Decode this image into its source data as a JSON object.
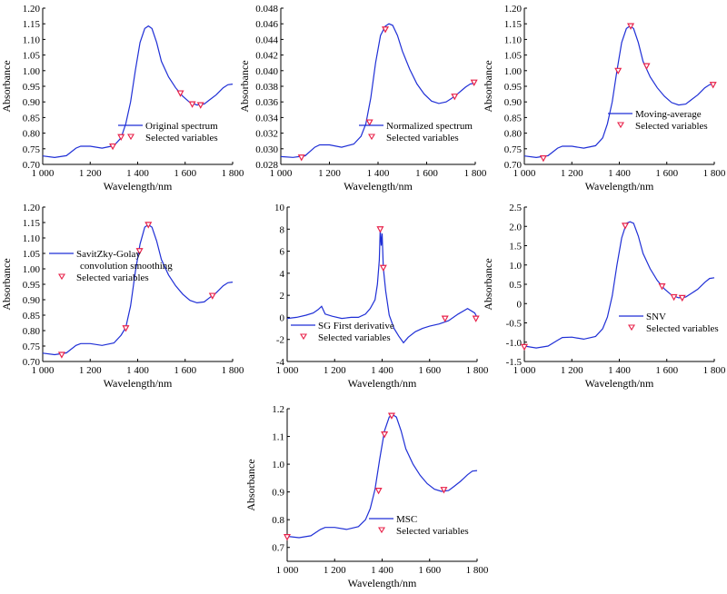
{
  "figure": {
    "colors": {
      "line": "#1f2fd6",
      "marker": "#e8224a",
      "axis": "#000000"
    }
  },
  "chart_data": [
    {
      "type": "line",
      "xlabel": "Wavelength/nm",
      "ylabel": "Absorbance",
      "xlim": [
        1000,
        1800
      ],
      "ylim": [
        0.7,
        1.2
      ],
      "x_ticks": [
        1000,
        1200,
        1400,
        1600,
        1800
      ],
      "x_tick_labels": [
        "1 000",
        "1 200",
        "1 400",
        "1 600",
        "1 800"
      ],
      "y_ticks": [
        0.7,
        0.75,
        0.8,
        0.85,
        0.9,
        0.95,
        1.0,
        1.05,
        1.1,
        1.15,
        1.2
      ],
      "y_tick_labels": [
        "0.70",
        "0.75",
        "0.80",
        "0.85",
        "0.90",
        "0.95",
        "1.00",
        "1.05",
        "1.10",
        "1.15",
        "1.20"
      ],
      "legend": {
        "placement": "bottom-right",
        "line_label": [
          "Original spectrum"
        ],
        "marker_label": "Selected variables"
      },
      "series": [
        {
          "x": [
            1000,
            1050,
            1100,
            1140,
            1160,
            1200,
            1250,
            1300,
            1330,
            1350,
            1370,
            1390,
            1410,
            1430,
            1445,
            1460,
            1480,
            1500,
            1530,
            1560,
            1590,
            1620,
            1650,
            1680,
            1700,
            1730,
            1760,
            1780,
            1800
          ],
          "y": [
            0.727,
            0.722,
            0.728,
            0.752,
            0.758,
            0.758,
            0.752,
            0.76,
            0.785,
            0.83,
            0.9,
            1.0,
            1.09,
            1.135,
            1.143,
            1.135,
            1.09,
            1.03,
            0.98,
            0.945,
            0.918,
            0.898,
            0.89,
            0.893,
            0.905,
            0.922,
            0.945,
            0.955,
            0.957
          ]
        }
      ],
      "selected": {
        "x": [
          1295,
          1330,
          1580,
          1630,
          1665
        ],
        "y": [
          0.758,
          0.788,
          0.928,
          0.893,
          0.89
        ]
      }
    },
    {
      "type": "line",
      "xlabel": "Wavelength/nm",
      "ylabel": "Absorbance",
      "xlim": [
        1000,
        1800
      ],
      "ylim": [
        0.028,
        0.048
      ],
      "x_ticks": [
        1000,
        1200,
        1400,
        1600,
        1800
      ],
      "x_tick_labels": [
        "1 000",
        "1 200",
        "1 400",
        "1 600",
        "1 800"
      ],
      "y_ticks": [
        0.028,
        0.03,
        0.032,
        0.034,
        0.036,
        0.038,
        0.04,
        0.042,
        0.044,
        0.046,
        0.048
      ],
      "y_tick_labels": [
        "0.028",
        "0.030",
        "0.032",
        "0.034",
        "0.036",
        "0.038",
        "0.040",
        "0.042",
        "0.044",
        "0.046",
        "0.048"
      ],
      "legend": {
        "placement": "bottom-right",
        "line_label": [
          "Normalized spectrum"
        ],
        "marker_label": "Selected variables"
      },
      "series": [
        {
          "x": [
            1000,
            1050,
            1100,
            1140,
            1160,
            1200,
            1250,
            1300,
            1330,
            1350,
            1370,
            1390,
            1410,
            1430,
            1445,
            1460,
            1480,
            1500,
            1530,
            1560,
            1590,
            1620,
            1650,
            1680,
            1700,
            1730,
            1760,
            1780,
            1800
          ],
          "y": [
            0.029,
            0.0289,
            0.0291,
            0.0302,
            0.0305,
            0.0305,
            0.0302,
            0.0306,
            0.0316,
            0.0332,
            0.0365,
            0.041,
            0.0445,
            0.0457,
            0.046,
            0.0458,
            0.0445,
            0.0425,
            0.0402,
            0.0383,
            0.037,
            0.0361,
            0.0358,
            0.036,
            0.0364,
            0.0371,
            0.0379,
            0.0383,
            0.0384
          ]
        }
      ],
      "selected": {
        "x": [
          1085,
          1365,
          1430,
          1715,
          1795
        ],
        "y": [
          0.0289,
          0.0334,
          0.0453,
          0.0367,
          0.0385
        ]
      }
    },
    {
      "type": "line",
      "xlabel": "Wavelength/nm",
      "ylabel": "Absorbance",
      "xlim": [
        1000,
        1800
      ],
      "ylim": [
        0.7,
        1.2
      ],
      "x_ticks": [
        1000,
        1200,
        1400,
        1600,
        1800
      ],
      "x_tick_labels": [
        "1 000",
        "1 200",
        "1 400",
        "1 600",
        "1 800"
      ],
      "y_ticks": [
        0.7,
        0.75,
        0.8,
        0.85,
        0.9,
        0.95,
        1.0,
        1.05,
        1.1,
        1.15,
        1.2
      ],
      "y_tick_labels": [
        "0.70",
        "0.75",
        "0.80",
        "0.85",
        "0.90",
        "0.95",
        "1.00",
        "1.05",
        "1.10",
        "1.15",
        "1.20"
      ],
      "legend": {
        "placement": "bottom-right",
        "line_label": [
          "Moving-average"
        ],
        "marker_label": "Selected variables"
      },
      "series": [
        {
          "x": [
            1000,
            1050,
            1100,
            1140,
            1160,
            1200,
            1250,
            1300,
            1330,
            1350,
            1370,
            1390,
            1410,
            1430,
            1445,
            1460,
            1480,
            1500,
            1530,
            1560,
            1590,
            1620,
            1650,
            1680,
            1700,
            1730,
            1760,
            1780,
            1800
          ],
          "y": [
            0.727,
            0.722,
            0.728,
            0.752,
            0.758,
            0.758,
            0.752,
            0.76,
            0.785,
            0.83,
            0.9,
            1.0,
            1.09,
            1.135,
            1.143,
            1.135,
            1.09,
            1.03,
            0.98,
            0.945,
            0.918,
            0.898,
            0.89,
            0.893,
            0.905,
            0.922,
            0.945,
            0.955,
            0.957
          ]
        }
      ],
      "selected": {
        "x": [
          1080,
          1395,
          1448,
          1515,
          1795
        ],
        "y": [
          0.72,
          1.0,
          1.143,
          1.015,
          0.955
        ]
      }
    },
    {
      "type": "line",
      "xlabel": "Wavelength/nm",
      "ylabel": "Absorbance",
      "xlim": [
        1000,
        1800
      ],
      "ylim": [
        0.7,
        1.2
      ],
      "x_ticks": [
        1000,
        1200,
        1400,
        1600,
        1800
      ],
      "x_tick_labels": [
        "1 000",
        "1 200",
        "1 400",
        "1 600",
        "1 800"
      ],
      "y_ticks": [
        0.7,
        0.75,
        0.8,
        0.85,
        0.9,
        0.95,
        1.0,
        1.05,
        1.1,
        1.15,
        1.2
      ],
      "y_tick_labels": [
        "0.70",
        "0.75",
        "0.80",
        "0.85",
        "0.90",
        "0.95",
        "1.00",
        "1.05",
        "1.10",
        "1.15",
        "1.20"
      ],
      "legend": {
        "placement": "middle-left",
        "line_label": [
          "SavitZky-Golay",
          "convolution smoothing"
        ],
        "marker_label": "Selected variables"
      },
      "series": [
        {
          "x": [
            1000,
            1050,
            1100,
            1140,
            1160,
            1200,
            1250,
            1300,
            1330,
            1350,
            1370,
            1390,
            1410,
            1430,
            1445,
            1460,
            1480,
            1500,
            1530,
            1560,
            1590,
            1620,
            1650,
            1680,
            1700,
            1730,
            1760,
            1780,
            1800
          ],
          "y": [
            0.727,
            0.722,
            0.728,
            0.752,
            0.758,
            0.758,
            0.752,
            0.76,
            0.785,
            0.81,
            0.88,
            0.99,
            1.08,
            1.135,
            1.143,
            1.135,
            1.09,
            1.03,
            0.98,
            0.945,
            0.918,
            0.898,
            0.89,
            0.893,
            0.905,
            0.922,
            0.945,
            0.955,
            0.957
          ]
        }
      ],
      "selected": {
        "x": [
          1080,
          1350,
          1408,
          1445,
          1715
        ],
        "y": [
          0.722,
          0.808,
          1.058,
          1.143,
          0.913
        ]
      }
    },
    {
      "type": "line",
      "xlabel": "Wavelength/nm",
      "ylabel": "",
      "xlim": [
        1000,
        1800
      ],
      "ylim": [
        -4,
        10
      ],
      "x_ticks": [
        1000,
        1200,
        1400,
        1600,
        1800
      ],
      "x_tick_labels": [
        "1 000",
        "1 200",
        "1 400",
        "1 600",
        "1 800"
      ],
      "y_ticks": [
        -4,
        -2,
        0,
        2,
        4,
        6,
        8,
        10
      ],
      "y_tick_labels": [
        "-4",
        "-2",
        "0",
        "2",
        "4",
        "6",
        "8",
        "10"
      ],
      "legend": {
        "placement": "bottom-center",
        "line_label": [
          "SG First derivative"
        ],
        "marker_label": "Selected variables"
      },
      "series": [
        {
          "x": [
            1000,
            1040,
            1080,
            1110,
            1130,
            1145,
            1160,
            1190,
            1230,
            1270,
            1300,
            1330,
            1350,
            1370,
            1380,
            1388,
            1392,
            1396,
            1400,
            1405,
            1415,
            1430,
            1450,
            1470,
            1490,
            1510,
            1540,
            1570,
            1600,
            1640,
            1680,
            1720,
            1760,
            1790,
            1800
          ],
          "y": [
            -0.1,
            0.0,
            0.2,
            0.4,
            0.7,
            1.0,
            0.3,
            0.1,
            -0.1,
            0.0,
            0.0,
            0.3,
            0.8,
            1.6,
            3.0,
            5.2,
            8.0,
            6.5,
            7.6,
            4.5,
            2.4,
            0.2,
            -1.0,
            -1.7,
            -2.3,
            -1.8,
            -1.3,
            -1.0,
            -0.8,
            -0.6,
            -0.3,
            0.3,
            0.8,
            0.4,
            0.0
          ]
        }
      ],
      "selected": {
        "x": [
          1392,
          1405,
          1665,
          1795
        ],
        "y": [
          8.0,
          4.5,
          -0.1,
          -0.1
        ]
      }
    },
    {
      "type": "line",
      "xlabel": "Wavelength/nm",
      "ylabel": "Absorbance",
      "xlim": [
        1000,
        1800
      ],
      "ylim": [
        -1.5,
        2.5
      ],
      "x_ticks": [
        1000,
        1200,
        1400,
        1600,
        1800
      ],
      "x_tick_labels": [
        "1 000",
        "1 200",
        "1 400",
        "1 600",
        "1 800"
      ],
      "y_ticks": [
        -1.5,
        -1.0,
        -0.5,
        0,
        0.5,
        1.0,
        1.5,
        2.0,
        2.5
      ],
      "y_tick_labels": [
        "-1.5",
        "-1.0",
        "-0.5",
        "0",
        "0.5",
        "1.0",
        "1.5",
        "2.0",
        "2.5"
      ],
      "legend": {
        "placement": "bottom-right",
        "line_label": [
          "SNV"
        ],
        "marker_label": "Selected variables"
      },
      "series": [
        {
          "x": [
            1000,
            1050,
            1100,
            1140,
            1160,
            1200,
            1250,
            1300,
            1330,
            1350,
            1370,
            1390,
            1410,
            1430,
            1445,
            1460,
            1480,
            1500,
            1530,
            1560,
            1590,
            1620,
            1650,
            1680,
            1700,
            1730,
            1760,
            1780,
            1800
          ],
          "y": [
            -1.1,
            -1.15,
            -1.1,
            -0.95,
            -0.88,
            -0.87,
            -0.92,
            -0.85,
            -0.65,
            -0.35,
            0.2,
            1.0,
            1.7,
            2.08,
            2.12,
            2.08,
            1.75,
            1.3,
            0.9,
            0.6,
            0.38,
            0.22,
            0.15,
            0.17,
            0.25,
            0.37,
            0.55,
            0.65,
            0.67
          ]
        }
      ],
      "selected": {
        "x": [
          1000,
          1425,
          1580,
          1630,
          1665
        ],
        "y": [
          -1.12,
          2.02,
          0.45,
          0.17,
          0.15
        ]
      }
    },
    {
      "type": "line",
      "xlabel": "Wavelength/nm",
      "ylabel": "Absorbance",
      "xlim": [
        1000,
        1800
      ],
      "ylim": [
        0.65,
        1.2
      ],
      "x_ticks": [
        1000,
        1200,
        1400,
        1600,
        1800
      ],
      "x_tick_labels": [
        "1 000",
        "1 200",
        "1 400",
        "1 600",
        "1 800"
      ],
      "y_ticks": [
        0.7,
        0.8,
        0.9,
        1.0,
        1.1,
        1.2
      ],
      "y_tick_labels": [
        "0.7",
        "0.8",
        "0.9",
        "1.0",
        "1.1",
        "1.2"
      ],
      "legend": {
        "placement": "bottom-center",
        "line_label": [
          "MSC"
        ],
        "marker_label": "Selected variables"
      },
      "series": [
        {
          "x": [
            1000,
            1050,
            1100,
            1140,
            1160,
            1200,
            1250,
            1300,
            1330,
            1350,
            1370,
            1390,
            1410,
            1430,
            1445,
            1460,
            1480,
            1500,
            1530,
            1560,
            1590,
            1620,
            1650,
            1680,
            1700,
            1730,
            1760,
            1780,
            1800
          ],
          "y": [
            0.74,
            0.735,
            0.742,
            0.765,
            0.772,
            0.772,
            0.765,
            0.775,
            0.8,
            0.84,
            0.91,
            1.02,
            1.12,
            1.17,
            1.178,
            1.17,
            1.12,
            1.055,
            1.0,
            0.96,
            0.93,
            0.91,
            0.902,
            0.905,
            0.918,
            0.938,
            0.962,
            0.975,
            0.977
          ]
        }
      ],
      "selected": {
        "x": [
          1000,
          1385,
          1410,
          1440,
          1660
        ],
        "y": [
          0.738,
          0.905,
          1.108,
          1.175,
          0.908
        ]
      }
    }
  ]
}
